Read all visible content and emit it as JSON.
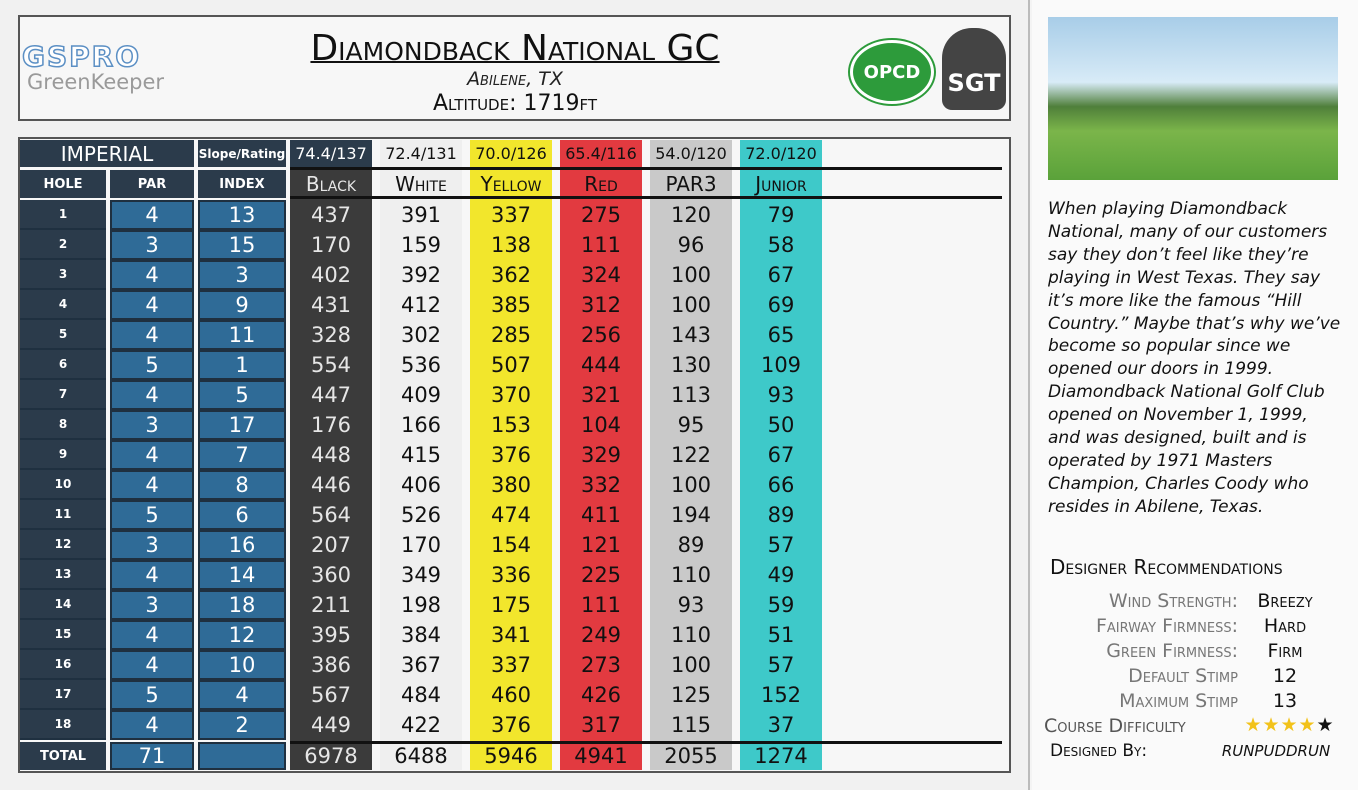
{
  "header": {
    "logo_top": "GSPRO",
    "logo_bottom": "GreenKeeper",
    "title": "Diamondback National GC",
    "location": "Abilene, TX",
    "altitude": "Altitude: 1719ft",
    "badges": [
      "OPCD",
      "SGT"
    ]
  },
  "table": {
    "unit": "IMPERIAL",
    "slope_label": "Slope/Rating",
    "columns": [
      "HOLE",
      "PAR",
      "INDEX"
    ],
    "total_label": "TOTAL",
    "par_total": 71,
    "holes": [
      [
        1,
        4,
        13
      ],
      [
        2,
        3,
        15
      ],
      [
        3,
        4,
        3
      ],
      [
        4,
        4,
        9
      ],
      [
        5,
        4,
        11
      ],
      [
        6,
        5,
        1
      ],
      [
        7,
        4,
        5
      ],
      [
        8,
        3,
        17
      ],
      [
        9,
        4,
        7
      ],
      [
        10,
        4,
        8
      ],
      [
        11,
        5,
        6
      ],
      [
        12,
        3,
        16
      ],
      [
        13,
        4,
        14
      ],
      [
        14,
        3,
        18
      ],
      [
        15,
        4,
        12
      ],
      [
        16,
        4,
        10
      ],
      [
        17,
        5,
        4
      ],
      [
        18,
        4,
        2
      ]
    ],
    "tees": [
      {
        "name": "Black",
        "rating": "74.4/137",
        "color": "#3b3b3b",
        "text_color": "#e6e6e6",
        "yards": [
          437,
          170,
          402,
          431,
          328,
          554,
          447,
          176,
          448,
          446,
          564,
          207,
          360,
          211,
          395,
          386,
          567,
          449
        ],
        "total": 6978
      },
      {
        "name": "White",
        "rating": "72.4/131",
        "color": "#efefef",
        "text_color": "#111111",
        "yards": [
          391,
          159,
          392,
          412,
          302,
          536,
          409,
          166,
          415,
          406,
          526,
          170,
          349,
          198,
          384,
          367,
          484,
          422
        ],
        "total": 6488
      },
      {
        "name": "Yellow",
        "rating": "70.0/126",
        "color": "#f2e62c",
        "text_color": "#111111",
        "yards": [
          337,
          138,
          362,
          385,
          285,
          507,
          370,
          153,
          376,
          380,
          474,
          154,
          336,
          175,
          341,
          337,
          460,
          376
        ],
        "total": 5946
      },
      {
        "name": "Red",
        "rating": "65.4/116",
        "color": "#e23a40",
        "text_color": "#111111",
        "yards": [
          275,
          111,
          324,
          312,
          256,
          444,
          321,
          104,
          329,
          332,
          411,
          121,
          225,
          111,
          249,
          273,
          426,
          317
        ],
        "total": 4941
      },
      {
        "name": "PAR3",
        "rating": "54.0/120",
        "color": "#c9c9c9",
        "text_color": "#111111",
        "yards": [
          120,
          96,
          100,
          100,
          143,
          130,
          113,
          95,
          122,
          100,
          194,
          89,
          110,
          93,
          110,
          100,
          125,
          115
        ],
        "total": 2055
      },
      {
        "name": "Junior",
        "rating": "72.0/120",
        "color": "#3ec9c9",
        "text_color": "#111111",
        "yards": [
          79,
          58,
          67,
          69,
          65,
          109,
          93,
          50,
          67,
          66,
          89,
          57,
          49,
          59,
          51,
          57,
          152,
          37
        ],
        "total": 1274
      }
    ]
  },
  "description": "When playing Diamondback National, many of our customers say they don’t feel like they’re playing in West Texas. They say it’s more like the famous “Hill Country.” Maybe that’s why we’ve become so popular since we opened our doors in 1999. Diamondback National Golf Club opened on November 1, 1999, and was designed, built and is operated by 1971 Masters Champion, Charles Coody who resides in Abilene, Texas.",
  "recommendations": {
    "title": "Designer Recommendations",
    "items": [
      {
        "label": "Wind Strength:",
        "value": "Breezy"
      },
      {
        "label": "Fairway Firmness:",
        "value": "Hard"
      },
      {
        "label": "Green Firmness:",
        "value": "Firm"
      },
      {
        "label": "Default Stimp",
        "value": 12
      },
      {
        "label": "Maximum Stimp",
        "value": 13
      }
    ],
    "difficulty_label": "Course Difficulty",
    "difficulty_stars": 4,
    "difficulty_max": 5,
    "designer_label": "Designed By:",
    "designer": "RunPuddRun"
  }
}
